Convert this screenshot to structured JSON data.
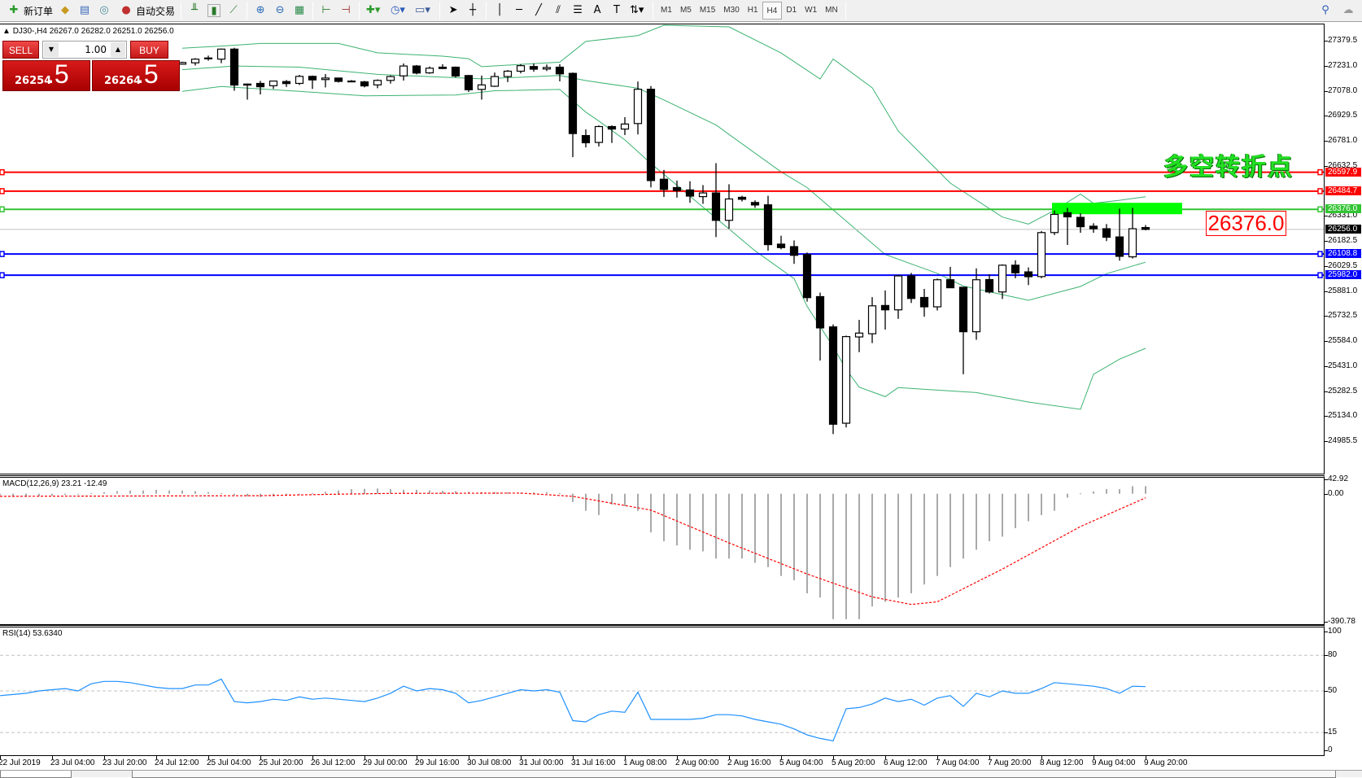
{
  "toolbar": {
    "new_order_label": "新订单",
    "auto_trade_label": "自动交易",
    "icons": [
      "new-order-icon",
      "market-watch-icon",
      "data-window-icon",
      "navigator-icon",
      "auto-trade-icon",
      "bar-chart-icon",
      "candlestick-icon",
      "line-chart-icon",
      "zoom-in-icon",
      "zoom-out-icon",
      "tile-windows-icon",
      "auto-scroll-icon",
      "chart-shift-icon",
      "indicators-icon",
      "periods-icon",
      "templates-icon",
      "cursor-icon",
      "crosshair-icon",
      "vertical-line-icon",
      "horizontal-line-icon",
      "trendline-icon",
      "equidistant-channel-icon",
      "fibonacci-icon",
      "text-icon",
      "text-label-icon",
      "arrows-icon",
      "search-icon",
      "chat-icon"
    ],
    "timeframes": [
      "M1",
      "M5",
      "M15",
      "M30",
      "H1",
      "H4",
      "D1",
      "W1",
      "MN"
    ],
    "active_timeframe": "H4"
  },
  "chart": {
    "symbol_info": "DJ30-,H4  26267.0 26282.0 26251.0 26256.0"
  },
  "trade_panel": {
    "sell_label": "SELL",
    "buy_label": "BUY",
    "volume": "1.00",
    "sell_price_main": "26254",
    "sell_price_frac": ".5",
    "buy_price_main": "26264",
    "buy_price_frac": ".5"
  },
  "annotation": {
    "text": "多空转折点",
    "price_tag": "26376.0",
    "zone_color": "#00ff00"
  },
  "indicators": {
    "macd_label": "MACD(12,26,9) 23.21 -12.49",
    "rsi_label": "RSI(14) 53.6340",
    "macd_axis": [
      "42.92",
      "0.00",
      "-390.78"
    ],
    "rsi_axis": [
      "100",
      "80",
      "50",
      "15",
      "0"
    ]
  },
  "chart_data": {
    "type": "candlestick",
    "symbol": "DJ30-",
    "timeframe": "H4",
    "price_axis_labels": [
      "27379.5",
      "27231.0",
      "27078.0",
      "26929.5",
      "26781.0",
      "26632.5",
      "26331.0",
      "26182.5",
      "26029.5",
      "25881.0",
      "25732.5",
      "25584.0",
      "25431.0",
      "25282.5",
      "25134.0",
      "24985.5"
    ],
    "ylim": [
      24985.5,
      27379.5
    ],
    "time_labels": [
      "22 Jul 2019",
      "23 Jul 04:00",
      "23 Jul 20:00",
      "24 Jul 12:00",
      "25 Jul 04:00",
      "25 Jul 20:00",
      "26 Jul 12:00",
      "29 Jul 00:00",
      "29 Jul 16:00",
      "30 Jul 08:00",
      "31 Jul 00:00",
      "31 Jul 16:00",
      "1 Aug 08:00",
      "2 Aug 00:00",
      "2 Aug 16:00",
      "5 Aug 04:00",
      "5 Aug 20:00",
      "6 Aug 12:00",
      "7 Aug 04:00",
      "7 Aug 20:00",
      "8 Aug 12:00",
      "9 Aug 04:00",
      "9 Aug 20:00"
    ],
    "candles_ohlc": [
      [
        27244,
        27259,
        27241,
        27254
      ],
      [
        27252,
        27280,
        27236,
        27274
      ],
      [
        27279,
        27295,
        27265,
        27281
      ],
      [
        27274,
        27337,
        27250,
        27334
      ],
      [
        27334,
        27342,
        27085,
        27119
      ],
      [
        27125,
        27128,
        27032,
        27119
      ],
      [
        27129,
        27144,
        27063,
        27109
      ],
      [
        27115,
        27144,
        27096,
        27143
      ],
      [
        27140,
        27149,
        27108,
        27128
      ],
      [
        27129,
        27180,
        27119,
        27171
      ],
      [
        27171,
        27176,
        27096,
        27150
      ],
      [
        27152,
        27185,
        27105,
        27161
      ],
      [
        27161,
        27162,
        27134,
        27141
      ],
      [
        27143,
        27149,
        27138,
        27142
      ],
      [
        27138,
        27144,
        27105,
        27114
      ],
      [
        27120,
        27153,
        27100,
        27147
      ],
      [
        27147,
        27177,
        27128,
        27170
      ],
      [
        27174,
        27248,
        27146,
        27233
      ],
      [
        27233,
        27239,
        27183,
        27191
      ],
      [
        27192,
        27230,
        27186,
        27220
      ],
      [
        27226,
        27244,
        27214,
        27218
      ],
      [
        27226,
        27230,
        27165,
        27173
      ],
      [
        27176,
        27180,
        27078,
        27091
      ],
      [
        27093,
        27176,
        27032,
        27120
      ],
      [
        27112,
        27194,
        27108,
        27170
      ],
      [
        27170,
        27209,
        27137,
        27202
      ],
      [
        27202,
        27244,
        27189,
        27235
      ],
      [
        27230,
        27248,
        27199,
        27214
      ],
      [
        27215,
        27242,
        27203,
        27224
      ],
      [
        27226,
        27244,
        27141,
        27186
      ],
      [
        27189,
        27194,
        26688,
        26829
      ],
      [
        26817,
        26854,
        26746,
        26774
      ],
      [
        26776,
        26878,
        26752,
        26871
      ],
      [
        26871,
        26878,
        26773,
        26856
      ],
      [
        26856,
        26927,
        26820,
        26886
      ],
      [
        26889,
        27140,
        26824,
        27094
      ],
      [
        27094,
        27113,
        26507,
        26548
      ],
      [
        26556,
        26612,
        26450,
        26495
      ],
      [
        26506,
        26548,
        26446,
        26488
      ],
      [
        26492,
        26544,
        26415,
        26455
      ],
      [
        26452,
        26521,
        26409,
        26474
      ],
      [
        26474,
        26652,
        26210,
        26310
      ],
      [
        26310,
        26526,
        26260,
        26438
      ],
      [
        26448,
        26457,
        26423,
        26436
      ],
      [
        26417,
        26430,
        26385,
        26402
      ],
      [
        26403,
        26457,
        26128,
        26165
      ],
      [
        26168,
        26218,
        26137,
        26147
      ],
      [
        26153,
        26190,
        26050,
        26101
      ],
      [
        26106,
        26118,
        25824,
        25848
      ],
      [
        25854,
        25878,
        25472,
        25667
      ],
      [
        25673,
        25688,
        25032,
        25091
      ],
      [
        25097,
        25621,
        25072,
        25615
      ],
      [
        25613,
        25715,
        25522,
        25636
      ],
      [
        25632,
        25851,
        25576,
        25799
      ],
      [
        25801,
        25891,
        25657,
        25775
      ],
      [
        25775,
        25984,
        25721,
        25978
      ],
      [
        25978,
        25996,
        25816,
        25843
      ],
      [
        25849,
        25900,
        25734,
        25793
      ],
      [
        25793,
        25962,
        25771,
        25955
      ],
      [
        25955,
        26032,
        25905,
        25907
      ],
      [
        25910,
        25912,
        25390,
        25644
      ],
      [
        25644,
        26023,
        25596,
        25955
      ],
      [
        25956,
        25988,
        25873,
        25882
      ],
      [
        25882,
        26047,
        25840,
        26042
      ],
      [
        26042,
        26071,
        25964,
        25996
      ],
      [
        26002,
        26029,
        25923,
        25973
      ],
      [
        25974,
        26246,
        25964,
        26237
      ],
      [
        26237,
        26369,
        26222,
        26346
      ],
      [
        26356,
        26385,
        26163,
        26331
      ],
      [
        26328,
        26353,
        26236,
        26272
      ],
      [
        26275,
        26293,
        26236,
        26260
      ],
      [
        26260,
        26288,
        26186,
        26209
      ],
      [
        26211,
        26380,
        26069,
        26095
      ],
      [
        26092,
        26385,
        26082,
        26260
      ],
      [
        26267,
        26282,
        26251,
        26256
      ]
    ],
    "bollinger_upper": [
      [
        0,
        27339
      ],
      [
        4,
        27357
      ],
      [
        6,
        27368
      ],
      [
        12,
        27368
      ],
      [
        15,
        27312
      ],
      [
        20,
        27292
      ],
      [
        22,
        27277
      ],
      [
        23,
        27229
      ],
      [
        29,
        27256
      ],
      [
        31,
        27380
      ],
      [
        35,
        27415
      ],
      [
        37,
        27477
      ],
      [
        42,
        27467
      ],
      [
        46,
        27311
      ],
      [
        49,
        27155
      ],
      [
        50,
        27275
      ],
      [
        53,
        27103
      ],
      [
        55,
        26844
      ],
      [
        59,
        26533
      ],
      [
        63,
        26330
      ],
      [
        65,
        26288
      ],
      [
        67,
        26370
      ],
      [
        69,
        26467
      ],
      [
        70,
        26412
      ],
      [
        72,
        26430
      ],
      [
        74,
        26451
      ]
    ],
    "bollinger_middle": [
      [
        0,
        27211
      ],
      [
        4,
        27233
      ],
      [
        9,
        27226
      ],
      [
        15,
        27183
      ],
      [
        23,
        27156
      ],
      [
        29,
        27176
      ],
      [
        31,
        27146
      ],
      [
        35,
        27100
      ],
      [
        37,
        27030
      ],
      [
        41,
        26880
      ],
      [
        46,
        26600
      ],
      [
        48,
        26506
      ],
      [
        54,
        26106
      ],
      [
        58,
        25993
      ],
      [
        60,
        25917
      ],
      [
        65,
        25832
      ],
      [
        69,
        25915
      ],
      [
        71,
        25991
      ],
      [
        74,
        26060
      ]
    ],
    "bollinger_lower": [
      [
        0,
        27081
      ],
      [
        3,
        27111
      ],
      [
        9,
        27081
      ],
      [
        14,
        27055
      ],
      [
        21,
        27060
      ],
      [
        24,
        27085
      ],
      [
        29,
        27093
      ],
      [
        31,
        26957
      ],
      [
        32,
        26904
      ],
      [
        34,
        26791
      ],
      [
        36,
        26650
      ],
      [
        38,
        26520
      ],
      [
        44,
        26128
      ],
      [
        47,
        25962
      ],
      [
        48,
        25796
      ],
      [
        50,
        25555
      ],
      [
        51,
        25419
      ],
      [
        52,
        25313
      ],
      [
        54,
        25256
      ],
      [
        55,
        25310
      ],
      [
        61,
        25280
      ],
      [
        65,
        25224
      ],
      [
        69,
        25180
      ],
      [
        70,
        25389
      ],
      [
        72,
        25480
      ],
      [
        74,
        25545
      ]
    ],
    "levels": [
      {
        "price": "26597.9",
        "color": "#ff0000"
      },
      {
        "price": "26484.7",
        "color": "#ff0000"
      },
      {
        "price": "26376.0",
        "color": "#33c433"
      },
      {
        "price": "26108.8",
        "color": "#0000ff"
      },
      {
        "price": "25982.0",
        "color": "#0000ff"
      }
    ],
    "current_price": "26256.0",
    "macd_histogram": [
      -5,
      -8,
      -10,
      -8,
      -6,
      -4,
      -2,
      2,
      5,
      8,
      10,
      10,
      12,
      10,
      10,
      8,
      5,
      2,
      -5,
      -8,
      -10,
      -8,
      -6,
      -3,
      2,
      6,
      10,
      14,
      15,
      16,
      14,
      12,
      12,
      10,
      9,
      8,
      6,
      5,
      5,
      4,
      3,
      4,
      5,
      2,
      -25,
      -52,
      -65,
      -33,
      -38,
      -52,
      -118,
      -145,
      -158,
      -171,
      -176,
      -198,
      -198,
      -198,
      -211,
      -224,
      -251,
      -264,
      -304,
      -317,
      -383,
      -383,
      -383,
      -344,
      -330,
      -317,
      -304,
      -277,
      -251,
      -224,
      -198,
      -171,
      -145,
      -131,
      -105,
      -84,
      -65,
      -52,
      -12,
      1,
      7,
      14,
      14,
      23,
      23.21
    ],
    "macd_signal": [
      [
        0,
        -8
      ],
      [
        20,
        -6
      ],
      [
        25,
        -2
      ],
      [
        30,
        1
      ],
      [
        40,
        2
      ],
      [
        44,
        -8
      ],
      [
        50,
        -50
      ],
      [
        56,
        -150
      ],
      [
        62,
        -245
      ],
      [
        67,
        -315
      ],
      [
        70,
        -338
      ],
      [
        72,
        -330
      ],
      [
        77,
        -230
      ],
      [
        83,
        -100
      ],
      [
        88,
        -12.49
      ]
    ],
    "macd_ylim": [
      -390.78,
      42.92
    ],
    "rsi": [
      46,
      47,
      48,
      50,
      51,
      52,
      50,
      56,
      58,
      58,
      57,
      55,
      53,
      52,
      52,
      55,
      55,
      60,
      41,
      40,
      41,
      43,
      42,
      45,
      43,
      44,
      43,
      42,
      41,
      44,
      48,
      54,
      50,
      52,
      51,
      48,
      40,
      42,
      45,
      48,
      51,
      50,
      51,
      49,
      25,
      24,
      30,
      33,
      32,
      49,
      26,
      26,
      26,
      26,
      27,
      30,
      30,
      29,
      26,
      24,
      22,
      18,
      13,
      10,
      8,
      35,
      36,
      39,
      44,
      41,
      43,
      38,
      44,
      46,
      37,
      48,
      45,
      50,
      48,
      48,
      52,
      57,
      56,
      55,
      54,
      52,
      48,
      54,
      53.634
    ],
    "rsi_levels": [
      80,
      50,
      15
    ],
    "rsi_ylim": [
      0,
      100
    ]
  }
}
